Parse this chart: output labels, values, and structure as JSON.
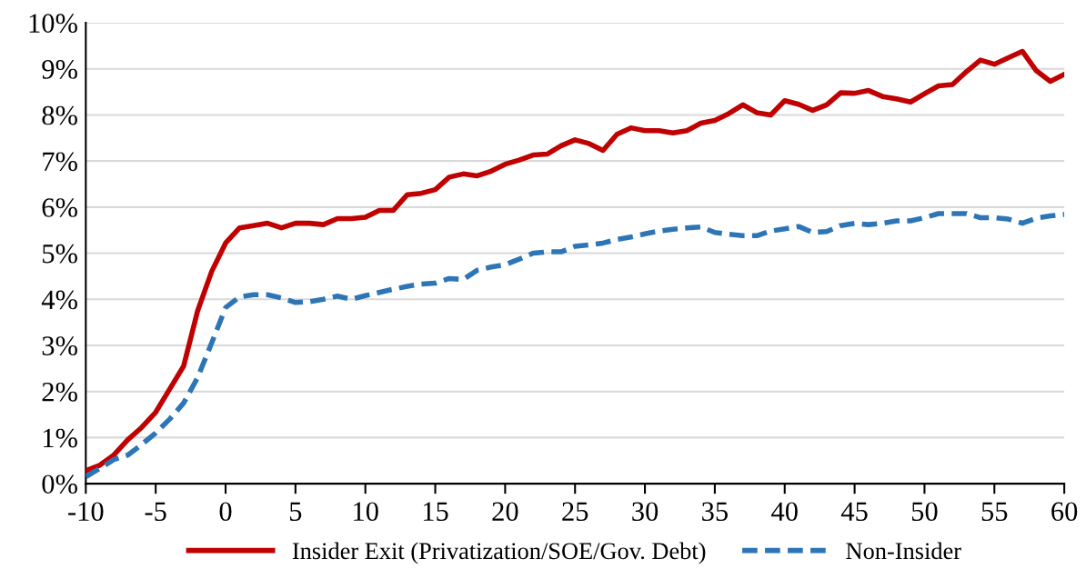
{
  "chart_data": {
    "type": "line",
    "x": [
      -10,
      -9,
      -8,
      -7,
      -6,
      -5,
      -4,
      -3,
      -2,
      -1,
      0,
      1,
      2,
      3,
      4,
      5,
      6,
      7,
      8,
      9,
      10,
      11,
      12,
      13,
      14,
      15,
      16,
      17,
      18,
      19,
      20,
      21,
      22,
      23,
      24,
      25,
      26,
      27,
      28,
      29,
      30,
      31,
      32,
      33,
      34,
      35,
      36,
      37,
      38,
      39,
      40,
      41,
      42,
      43,
      44,
      45,
      46,
      47,
      48,
      49,
      50,
      51,
      52,
      53,
      54,
      55,
      56,
      57,
      58,
      59,
      60
    ],
    "series": [
      {
        "name": "Insider Exit (Privatization/SOE/Gov. Debt)",
        "color": "#c00000",
        "line_style": "solid",
        "values": [
          0.28,
          0.4,
          0.62,
          0.95,
          1.22,
          1.55,
          2.05,
          2.55,
          3.75,
          4.6,
          5.22,
          5.55,
          5.6,
          5.65,
          5.55,
          5.65,
          5.65,
          5.62,
          5.75,
          5.75,
          5.78,
          5.93,
          5.93,
          6.27,
          6.3,
          6.38,
          6.65,
          6.72,
          6.68,
          6.78,
          6.93,
          7.02,
          7.13,
          7.15,
          7.33,
          7.46,
          7.38,
          7.23,
          7.58,
          7.72,
          7.66,
          7.66,
          7.61,
          7.66,
          7.82,
          7.88,
          8.03,
          8.22,
          8.05,
          8.0,
          8.31,
          8.23,
          8.1,
          8.22,
          8.48,
          8.47,
          8.53,
          8.4,
          8.35,
          8.28,
          8.46,
          8.63,
          8.66,
          8.94,
          9.19,
          9.1,
          9.24,
          9.38,
          8.96,
          8.73,
          8.88
        ]
      },
      {
        "name": "Non-Insider",
        "color": "#2e75b6",
        "line_style": "dashed",
        "values": [
          0.15,
          0.33,
          0.52,
          0.62,
          0.85,
          1.1,
          1.4,
          1.75,
          2.3,
          3.05,
          3.82,
          4.05,
          4.1,
          4.1,
          4.03,
          3.93,
          3.95,
          4.0,
          4.07,
          4.0,
          4.08,
          4.15,
          4.22,
          4.28,
          4.33,
          4.35,
          4.45,
          4.43,
          4.63,
          4.7,
          4.75,
          4.87,
          5.0,
          5.03,
          5.03,
          5.15,
          5.18,
          5.22,
          5.3,
          5.35,
          5.42,
          5.48,
          5.52,
          5.55,
          5.57,
          5.45,
          5.41,
          5.38,
          5.38,
          5.48,
          5.53,
          5.58,
          5.45,
          5.47,
          5.6,
          5.65,
          5.62,
          5.65,
          5.7,
          5.7,
          5.77,
          5.86,
          5.86,
          5.86,
          5.77,
          5.77,
          5.74,
          5.65,
          5.76,
          5.81,
          5.84
        ]
      }
    ],
    "xlim": [
      -10,
      60
    ],
    "xticks": [
      -10,
      -5,
      0,
      5,
      10,
      15,
      20,
      25,
      30,
      35,
      40,
      45,
      50,
      55,
      60
    ],
    "ylim": [
      0,
      10
    ],
    "yticks": [
      {
        "value": 0,
        "label": "0%"
      },
      {
        "value": 1,
        "label": "1%"
      },
      {
        "value": 2,
        "label": "2%"
      },
      {
        "value": 3,
        "label": "3%"
      },
      {
        "value": 4,
        "label": "4%"
      },
      {
        "value": 5,
        "label": "5%"
      },
      {
        "value": 6,
        "label": "6%"
      },
      {
        "value": 7,
        "label": "7%"
      },
      {
        "value": 8,
        "label": "8%"
      },
      {
        "value": 9,
        "label": "9%"
      },
      {
        "value": 10,
        "label": "10%"
      }
    ],
    "grid": "y",
    "legend": "bottom",
    "marker": "none"
  }
}
